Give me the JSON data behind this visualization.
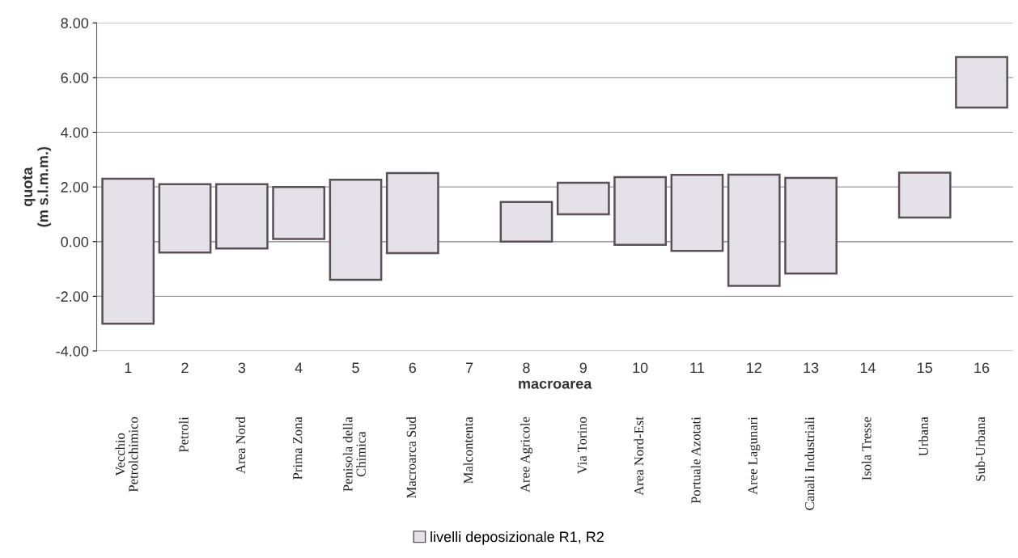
{
  "chart_data": {
    "type": "bar",
    "xlabel": "macroarea",
    "ylabel": "quota\n(m s.l.m.m.)",
    "categories": [
      "1",
      "2",
      "3",
      "4",
      "5",
      "6",
      "7",
      "8",
      "9",
      "10",
      "11",
      "12",
      "13",
      "14",
      "15",
      "16"
    ],
    "series": [
      {
        "name": "livelli deposizionale R1, R2",
        "color": "#e4e2e8",
        "base": [
          -3.0,
          -0.4,
          -0.25,
          0.1,
          -1.4,
          -0.42,
          null,
          0.0,
          1.0,
          -0.12,
          -0.34,
          -1.62,
          -1.17,
          null,
          0.88,
          4.9
        ],
        "values": [
          5.3,
          2.5,
          2.35,
          1.9,
          3.66,
          2.93,
          null,
          1.45,
          1.15,
          2.48,
          2.78,
          4.07,
          3.5,
          null,
          1.64,
          1.85
        ]
      }
    ],
    "ylim": [
      -4,
      8
    ],
    "yticks": [
      {
        "value": -4,
        "label": "-4.00"
      },
      {
        "value": -2,
        "label": "-2.00"
      },
      {
        "value": 0,
        "label": "0.00"
      },
      {
        "value": 2,
        "label": "2.00"
      },
      {
        "value": 4,
        "label": "4.00"
      },
      {
        "value": 6,
        "label": "6.00"
      },
      {
        "value": 8,
        "label": "8.00"
      }
    ],
    "grid": "y",
    "legend": "bottom",
    "annotations": [
      "Vecchio\nPetrolchimico",
      "Petroli",
      "Area Nord",
      "Prima Zona",
      "Penisola della\nChimica",
      "Macroarca Sud",
      "Malcontenta",
      "Aree Agricole",
      "Via Torino",
      "Area Nord-Est",
      "Portuale Azotati",
      "Aree Lagunari",
      "Canali Industriali",
      "Isola Tresse",
      "Urbana",
      "Sub-Urbana"
    ]
  }
}
